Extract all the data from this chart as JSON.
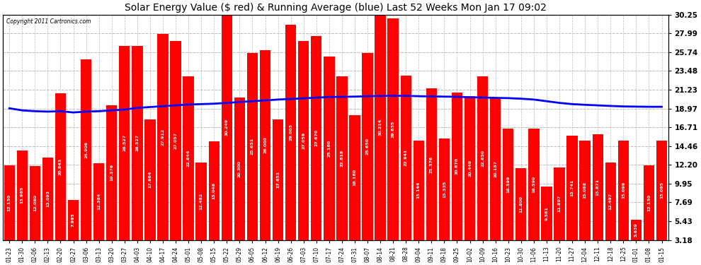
{
  "title": "Solar Energy Value ($ red) & Running Average (blue) Last 52 Weeks Mon Jan 17 09:02",
  "copyright": "Copyright 2011 Cartronics.com",
  "bar_color": "#ff0000",
  "line_color": "#0000ff",
  "background_color": "#ffffff",
  "grid_color": "#bbbbbb",
  "ymin": 3.18,
  "ymax": 30.25,
  "yticks_right": [
    3.18,
    5.43,
    7.69,
    9.95,
    12.2,
    14.46,
    16.71,
    18.97,
    21.23,
    23.48,
    25.74,
    27.99,
    30.25
  ],
  "categories": [
    "01-23",
    "01-30",
    "02-06",
    "02-13",
    "02-20",
    "02-27",
    "03-06",
    "03-13",
    "03-20",
    "03-27",
    "04-03",
    "04-10",
    "04-17",
    "04-24",
    "05-01",
    "05-08",
    "05-15",
    "05-22",
    "05-29",
    "06-05",
    "06-12",
    "06-19",
    "06-26",
    "07-03",
    "07-10",
    "07-17",
    "07-24",
    "07-31",
    "08-07",
    "08-14",
    "08-21",
    "08-28",
    "09-04",
    "09-11",
    "09-18",
    "09-25",
    "10-02",
    "10-09",
    "10-16",
    "10-23",
    "10-30",
    "11-06",
    "11-13",
    "11-20",
    "11-27",
    "12-04",
    "12-11",
    "12-18",
    "12-25",
    "01-01",
    "01-08",
    "01-15"
  ],
  "values": [
    12.13,
    13.965,
    12.08,
    13.093,
    20.843,
    7.995,
    24.906,
    12.384,
    19.376,
    26.527,
    26.527,
    17.664,
    27.912,
    27.057,
    22.844,
    12.482,
    15.048,
    30.249,
    20.3,
    25.651,
    26.0,
    17.651,
    29.003,
    27.059,
    27.67,
    25.18,
    22.818,
    18.18,
    25.65,
    30.214,
    29.835,
    22.941,
    15.144,
    21.376,
    15.335,
    20.87,
    20.449,
    22.85,
    20.187,
    16.599,
    11.8,
    16.59,
    9.581,
    11.897,
    15.741,
    15.088,
    15.871,
    12.497,
    15.099,
    5.639,
    12.13,
    15.095
  ],
  "running_avg": [
    19.0,
    18.75,
    18.65,
    18.6,
    18.65,
    18.5,
    18.6,
    18.65,
    18.75,
    18.85,
    19.05,
    19.15,
    19.25,
    19.35,
    19.45,
    19.5,
    19.55,
    19.65,
    19.75,
    19.85,
    19.95,
    20.05,
    20.12,
    20.2,
    20.28,
    20.35,
    20.38,
    20.4,
    20.45,
    20.48,
    20.5,
    20.5,
    20.45,
    20.42,
    20.4,
    20.38,
    20.32,
    20.3,
    20.25,
    20.22,
    20.15,
    20.05,
    19.85,
    19.65,
    19.5,
    19.42,
    19.35,
    19.28,
    19.22,
    19.2,
    19.18,
    19.18
  ],
  "bar_label_fontsize": 4.5,
  "title_fontsize": 10,
  "xlabel_fontsize": 5.5,
  "ylabel_fontsize": 7.5
}
